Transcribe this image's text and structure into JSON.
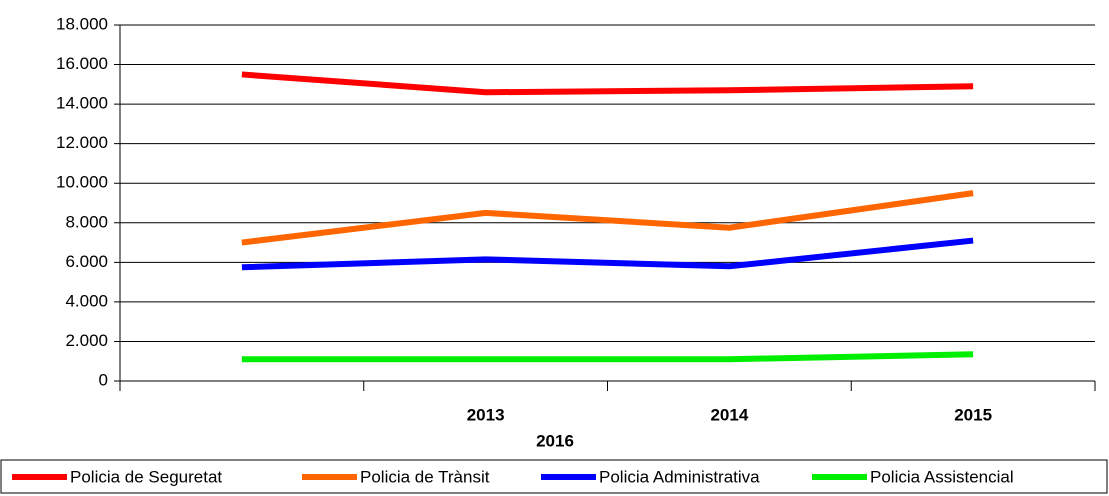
{
  "chart_data": {
    "type": "line",
    "categories": [
      null,
      "2013",
      "2014",
      "2015"
    ],
    "x_label": "2016",
    "series": [
      {
        "name": "Policia de Seguretat",
        "color": "#ff0000",
        "values": [
          15500,
          14600,
          14700,
          14900
        ]
      },
      {
        "name": "Policia de Trànsit",
        "color": "#ff6600",
        "values": [
          7000,
          8500,
          7750,
          9500
        ]
      },
      {
        "name": "Policia Administrativa",
        "color": "#0000ff",
        "values": [
          5750,
          6150,
          5800,
          7100
        ]
      },
      {
        "name": "Policia Assistencial",
        "color": "#00ee00",
        "values": [
          1100,
          1100,
          1100,
          1350
        ]
      }
    ],
    "ylim": [
      0,
      18000
    ],
    "yticks": [
      0,
      {
        "value": 2000,
        "label": "2.000"
      },
      {
        "value": 4000,
        "label": "4.000"
      },
      {
        "value": 6000,
        "label": "6.000"
      },
      {
        "value": 8000,
        "label": "8.000"
      },
      {
        "value": 10000,
        "label": "10.000"
      },
      {
        "value": 12000,
        "label": "12.000"
      },
      {
        "value": 14000,
        "label": "14.000"
      },
      {
        "value": 16000,
        "label": "16.000"
      },
      {
        "value": 18000,
        "label": "18.000"
      }
    ],
    "grid": true,
    "legend": "bottom"
  }
}
